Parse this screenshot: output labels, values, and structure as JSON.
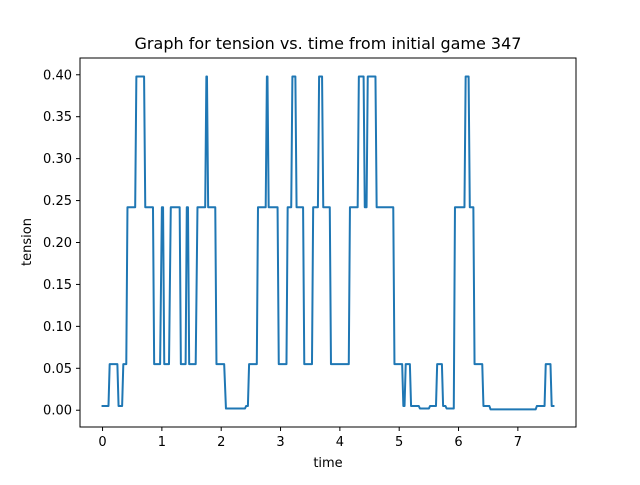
{
  "chart_data": {
    "type": "line",
    "title": "Graph for tension vs. time from initial game 347",
    "xlabel": "time",
    "ylabel": "tension",
    "xlim": [
      -0.38,
      7.98
    ],
    "ylim": [
      -0.02,
      0.42
    ],
    "xticks": [
      0,
      1,
      2,
      3,
      4,
      5,
      6,
      7
    ],
    "yticks": [
      0.0,
      0.05,
      0.1,
      0.15,
      0.2,
      0.25,
      0.3,
      0.35,
      0.4
    ],
    "ytick_labels": [
      "0.00",
      "0.05",
      "0.10",
      "0.15",
      "0.20",
      "0.25",
      "0.30",
      "0.35",
      "0.40"
    ],
    "grid": false,
    "series_color": "#1f77b4",
    "series": [
      {
        "points": [
          [
            0.0,
            0.005
          ],
          [
            0.1,
            0.005
          ],
          [
            0.12,
            0.055
          ],
          [
            0.25,
            0.055
          ],
          [
            0.27,
            0.005
          ],
          [
            0.33,
            0.005
          ],
          [
            0.35,
            0.055
          ],
          [
            0.4,
            0.055
          ],
          [
            0.42,
            0.242
          ],
          [
            0.55,
            0.242
          ],
          [
            0.57,
            0.398
          ],
          [
            0.7,
            0.398
          ],
          [
            0.72,
            0.242
          ],
          [
            0.85,
            0.242
          ],
          [
            0.87,
            0.055
          ],
          [
            0.97,
            0.055
          ],
          [
            1.0,
            0.242
          ],
          [
            1.02,
            0.242
          ],
          [
            1.04,
            0.055
          ],
          [
            1.12,
            0.055
          ],
          [
            1.15,
            0.242
          ],
          [
            1.3,
            0.242
          ],
          [
            1.32,
            0.055
          ],
          [
            1.4,
            0.055
          ],
          [
            1.42,
            0.242
          ],
          [
            1.44,
            0.242
          ],
          [
            1.46,
            0.055
          ],
          [
            1.57,
            0.055
          ],
          [
            1.6,
            0.242
          ],
          [
            1.73,
            0.242
          ],
          [
            1.75,
            0.398
          ],
          [
            1.76,
            0.398
          ],
          [
            1.78,
            0.242
          ],
          [
            1.9,
            0.242
          ],
          [
            1.92,
            0.055
          ],
          [
            2.05,
            0.055
          ],
          [
            2.08,
            0.002
          ],
          [
            2.4,
            0.002
          ],
          [
            2.42,
            0.005
          ],
          [
            2.45,
            0.005
          ],
          [
            2.47,
            0.055
          ],
          [
            2.6,
            0.055
          ],
          [
            2.62,
            0.242
          ],
          [
            2.75,
            0.242
          ],
          [
            2.77,
            0.398
          ],
          [
            2.78,
            0.398
          ],
          [
            2.8,
            0.242
          ],
          [
            2.95,
            0.242
          ],
          [
            2.97,
            0.055
          ],
          [
            3.1,
            0.055
          ],
          [
            3.12,
            0.242
          ],
          [
            3.18,
            0.242
          ],
          [
            3.2,
            0.398
          ],
          [
            3.25,
            0.398
          ],
          [
            3.27,
            0.242
          ],
          [
            3.38,
            0.242
          ],
          [
            3.4,
            0.055
          ],
          [
            3.53,
            0.055
          ],
          [
            3.55,
            0.242
          ],
          [
            3.63,
            0.242
          ],
          [
            3.65,
            0.398
          ],
          [
            3.7,
            0.398
          ],
          [
            3.72,
            0.242
          ],
          [
            3.83,
            0.242
          ],
          [
            3.85,
            0.055
          ],
          [
            4.15,
            0.055
          ],
          [
            4.17,
            0.242
          ],
          [
            4.3,
            0.242
          ],
          [
            4.32,
            0.398
          ],
          [
            4.4,
            0.398
          ],
          [
            4.42,
            0.242
          ],
          [
            4.45,
            0.242
          ],
          [
            4.47,
            0.398
          ],
          [
            4.6,
            0.398
          ],
          [
            4.62,
            0.242
          ],
          [
            4.9,
            0.242
          ],
          [
            4.92,
            0.055
          ],
          [
            5.05,
            0.055
          ],
          [
            5.07,
            0.005
          ],
          [
            5.09,
            0.005
          ],
          [
            5.11,
            0.055
          ],
          [
            5.18,
            0.055
          ],
          [
            5.2,
            0.005
          ],
          [
            5.33,
            0.005
          ],
          [
            5.35,
            0.002
          ],
          [
            5.5,
            0.002
          ],
          [
            5.52,
            0.005
          ],
          [
            5.62,
            0.005
          ],
          [
            5.64,
            0.055
          ],
          [
            5.72,
            0.055
          ],
          [
            5.74,
            0.005
          ],
          [
            5.78,
            0.005
          ],
          [
            5.8,
            0.002
          ],
          [
            5.92,
            0.002
          ],
          [
            5.94,
            0.242
          ],
          [
            6.1,
            0.242
          ],
          [
            6.12,
            0.398
          ],
          [
            6.17,
            0.398
          ],
          [
            6.19,
            0.242
          ],
          [
            6.25,
            0.242
          ],
          [
            6.27,
            0.055
          ],
          [
            6.4,
            0.055
          ],
          [
            6.42,
            0.005
          ],
          [
            6.52,
            0.005
          ],
          [
            6.54,
            0.001
          ],
          [
            7.3,
            0.001
          ],
          [
            7.32,
            0.005
          ],
          [
            7.45,
            0.005
          ],
          [
            7.47,
            0.055
          ],
          [
            7.55,
            0.055
          ],
          [
            7.57,
            0.005
          ],
          [
            7.6,
            0.005
          ]
        ]
      }
    ]
  }
}
